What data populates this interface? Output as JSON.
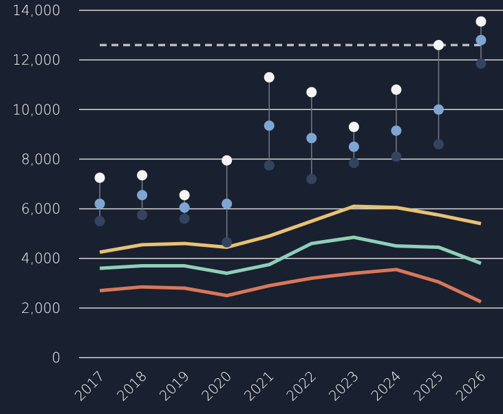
{
  "chart_data": {
    "type": "line",
    "categories": [
      "2017",
      "2018",
      "2019",
      "2020",
      "2021",
      "2022",
      "2023",
      "2024",
      "2025",
      "2026"
    ],
    "ylim": [
      0,
      14000
    ],
    "yticks": [
      0,
      {
        "value": 2000,
        "label": "2,000"
      },
      {
        "value": 4000,
        "label": "4,000"
      },
      {
        "value": 6000,
        "label": "6,000"
      },
      {
        "value": 8000,
        "label": "8,000"
      },
      {
        "value": 10000,
        "label": "10,000"
      },
      {
        "value": 12000,
        "label": "12,000"
      },
      {
        "value": 14000,
        "label": "14,000"
      }
    ],
    "grid": true,
    "reference_line": {
      "value": 12600,
      "color": "#b9bcc2",
      "style": "dashed"
    },
    "series": [
      {
        "color": "#e7c274",
        "mode": "line",
        "values": [
          4250,
          4550,
          4600,
          4450,
          4900,
          5500,
          6100,
          6050,
          5750,
          5400
        ]
      },
      {
        "color": "#8fcfb9",
        "mode": "line",
        "values": [
          3600,
          3700,
          3700,
          3400,
          3750,
          4600,
          4850,
          4500,
          4450,
          3800
        ]
      },
      {
        "color": "#d9775a",
        "mode": "line",
        "values": [
          2700,
          2850,
          2800,
          2500,
          2900,
          3200,
          3400,
          3550,
          3050,
          2250
        ]
      },
      {
        "color": "#34445f",
        "mode": "markers",
        "values": [
          5500,
          5750,
          5600,
          4650,
          7750,
          7200,
          7850,
          8100,
          8600,
          11850
        ]
      },
      {
        "color": "#7fa6d3",
        "mode": "markers",
        "values": [
          6200,
          6550,
          6050,
          6200,
          9350,
          8850,
          8500,
          9150,
          10000,
          12800
        ]
      },
      {
        "color": "#f4f4f4",
        "mode": "markers",
        "values": [
          7250,
          7350,
          6550,
          7950,
          11300,
          10700,
          9300,
          10800,
          12600,
          13550
        ]
      }
    ]
  }
}
